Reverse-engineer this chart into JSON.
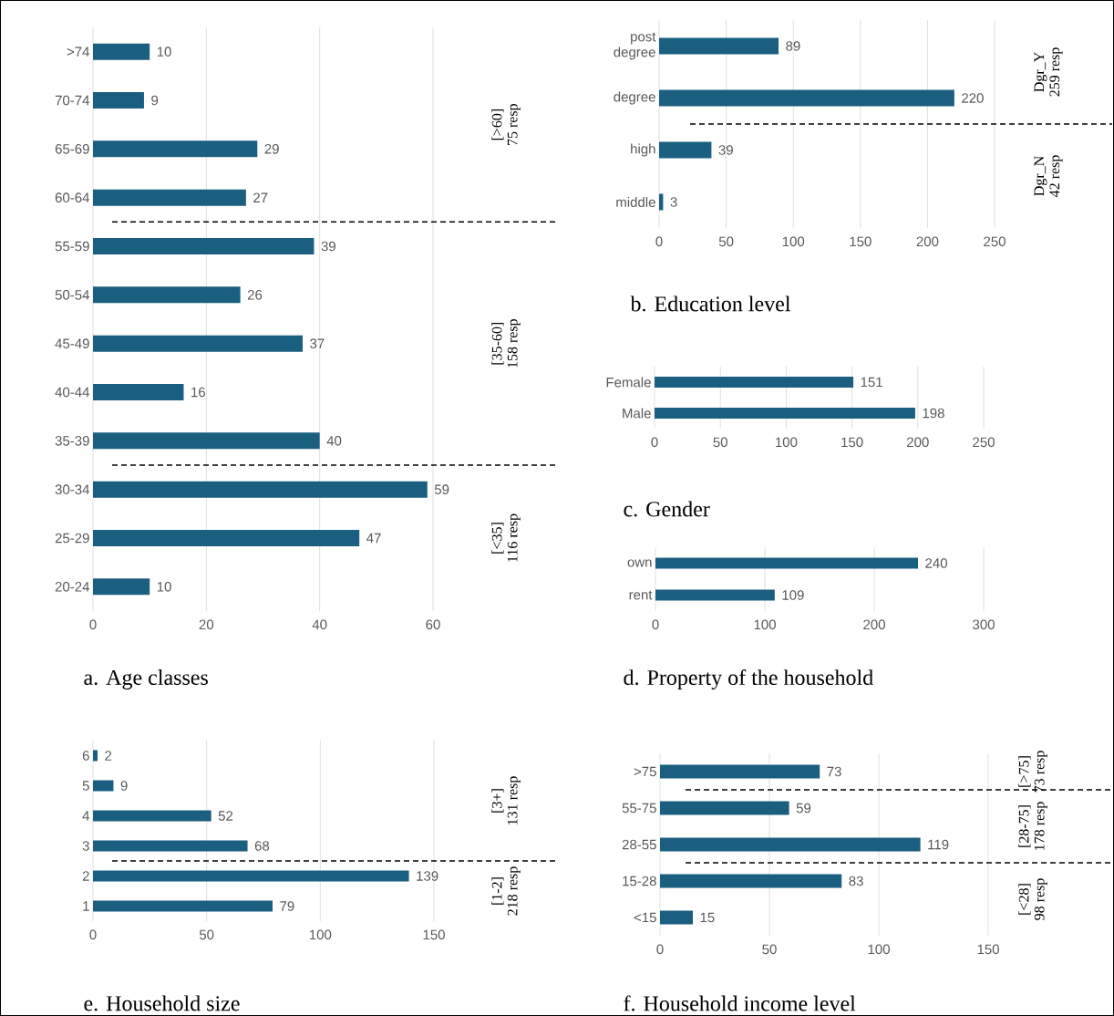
{
  "chart_data": [
    {
      "type": "bar",
      "orientation": "horizontal",
      "title": "a. Age classes",
      "categories": [
        ">74",
        "70-74",
        "65-69",
        "60-64",
        "55-59",
        "50-54",
        "45-49",
        "40-44",
        "35-39",
        "30-34",
        "25-29",
        "20-24"
      ],
      "values": [
        10,
        9,
        29,
        27,
        39,
        26,
        37,
        16,
        40,
        59,
        47,
        10
      ],
      "color": "#1b5f80",
      "xlim": [
        0,
        60
      ],
      "xticks": [
        0,
        20,
        40,
        60
      ],
      "grid": "x",
      "data_labels": true,
      "annotations": [
        "[>60]",
        "75 resp",
        "[35-60]",
        "158 resp",
        "[<35]",
        "116 resp"
      ]
    },
    {
      "type": "bar",
      "orientation": "horizontal",
      "title": "b. Education level",
      "categories": [
        "post degree",
        "degree",
        "high",
        "middle"
      ],
      "values": [
        89,
        220,
        39,
        3
      ],
      "color": "#1b5f80",
      "xlim": [
        0,
        250
      ],
      "xticks": [
        0,
        50,
        100,
        150,
        200,
        250
      ],
      "grid": "x",
      "data_labels": true,
      "annotations": [
        "Dgr_Y",
        "259 resp",
        "Dgr_N",
        "42 resp"
      ]
    },
    {
      "type": "bar",
      "orientation": "horizontal",
      "title": "c. Gender",
      "categories": [
        "Female",
        "Male"
      ],
      "values": [
        151,
        198
      ],
      "color": "#1b5f80",
      "xlim": [
        0,
        250
      ],
      "xticks": [
        0,
        50,
        100,
        150,
        200,
        250
      ],
      "grid": "x",
      "data_labels": true
    },
    {
      "type": "bar",
      "orientation": "horizontal",
      "title": "d. Property of the household",
      "categories": [
        "own",
        "rent"
      ],
      "values": [
        240,
        109
      ],
      "color": "#1b5f80",
      "xlim": [
        0,
        300
      ],
      "xticks": [
        0,
        100,
        200,
        300
      ],
      "grid": "x",
      "data_labels": true
    },
    {
      "type": "bar",
      "orientation": "horizontal",
      "title": "e. Household size",
      "categories": [
        "6",
        "5",
        "4",
        "3",
        "2",
        "1"
      ],
      "values": [
        2,
        9,
        52,
        68,
        139,
        79
      ],
      "color": "#1b5f80",
      "xlim": [
        0,
        150
      ],
      "xticks": [
        0,
        50,
        100,
        150
      ],
      "grid": "x",
      "data_labels": true,
      "annotations": [
        "[3+]",
        "131 resp",
        "[1-2]",
        "218 resp"
      ]
    },
    {
      "type": "bar",
      "orientation": "horizontal",
      "title": "f. Household income level",
      "categories": [
        ">75",
        "55-75",
        "28-55",
        "15-28",
        "<15"
      ],
      "values": [
        73,
        59,
        119,
        83,
        15
      ],
      "color": "#1b5f80",
      "xlim": [
        0,
        150
      ],
      "xticks": [
        0,
        50,
        100,
        150
      ],
      "grid": "x",
      "data_labels": true,
      "annotations": [
        "[>75]",
        "73 resp",
        "[28-75]",
        "178 resp",
        "[<28]",
        "98 resp"
      ]
    }
  ]
}
